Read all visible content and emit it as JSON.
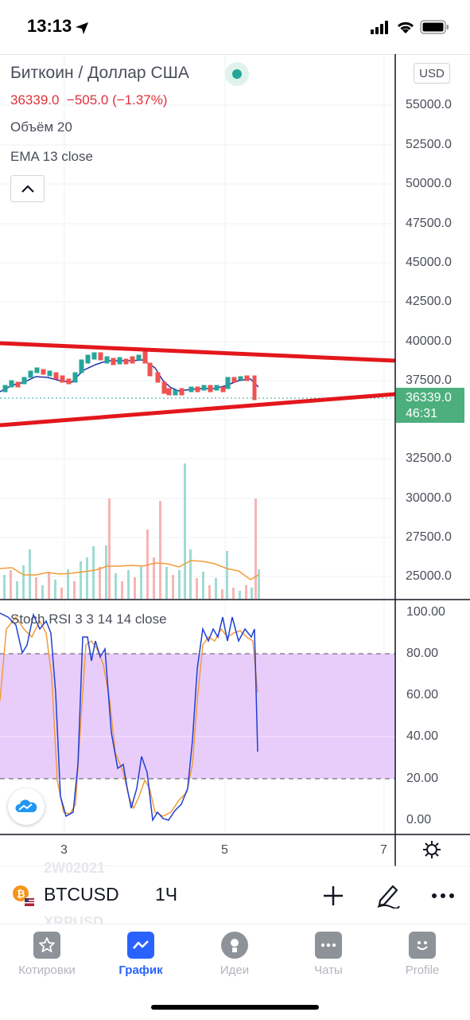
{
  "status_bar": {
    "time": "13:13"
  },
  "legend": {
    "title": "Биткоин / Доллар США",
    "price_line": "36339.0  −505.0 (−1.37%)",
    "volume": "Объём 20",
    "ema": "EMA 13 close"
  },
  "price_axis": {
    "currency": "USD",
    "ticks": [
      "55000.0",
      "52500.0",
      "50000.0",
      "47500.0",
      "45000.0",
      "42500.0",
      "40000.0",
      "37500.0",
      "32500.0",
      "30000.0",
      "27500.0",
      "25000.0"
    ],
    "last_price": "36339.0",
    "countdown": "46:31"
  },
  "rsi": {
    "title": "Stoch RSI 3 3 14 14 close",
    "ticks": [
      "100.00",
      "80.00",
      "60.00",
      "40.00",
      "20.00",
      "0.00"
    ]
  },
  "time_axis": {
    "ticks": [
      "3",
      "5",
      "7"
    ]
  },
  "background_watchlist": [
    "2W02021",
    "XRPUSD"
  ],
  "toolbar": {
    "symbol": "BTCUSD",
    "interval": "1Ч"
  },
  "tabs": [
    {
      "label": "Котировки",
      "icon": "star-icon"
    },
    {
      "label": "График",
      "icon": "chart-icon"
    },
    {
      "label": "Идеи",
      "icon": "lightbulb-icon"
    },
    {
      "label": "Чаты",
      "icon": "chat-icon"
    },
    {
      "label": "Profile",
      "icon": "smile-icon"
    }
  ],
  "colors": {
    "up": "#26a69a",
    "down": "#ef5350",
    "trendline": "#e3171c",
    "rsi_k": "#1e3fd6",
    "rsi_d": "#f29c38",
    "rsi_band": "#e8cdfb",
    "accent": "#2962ff"
  }
}
